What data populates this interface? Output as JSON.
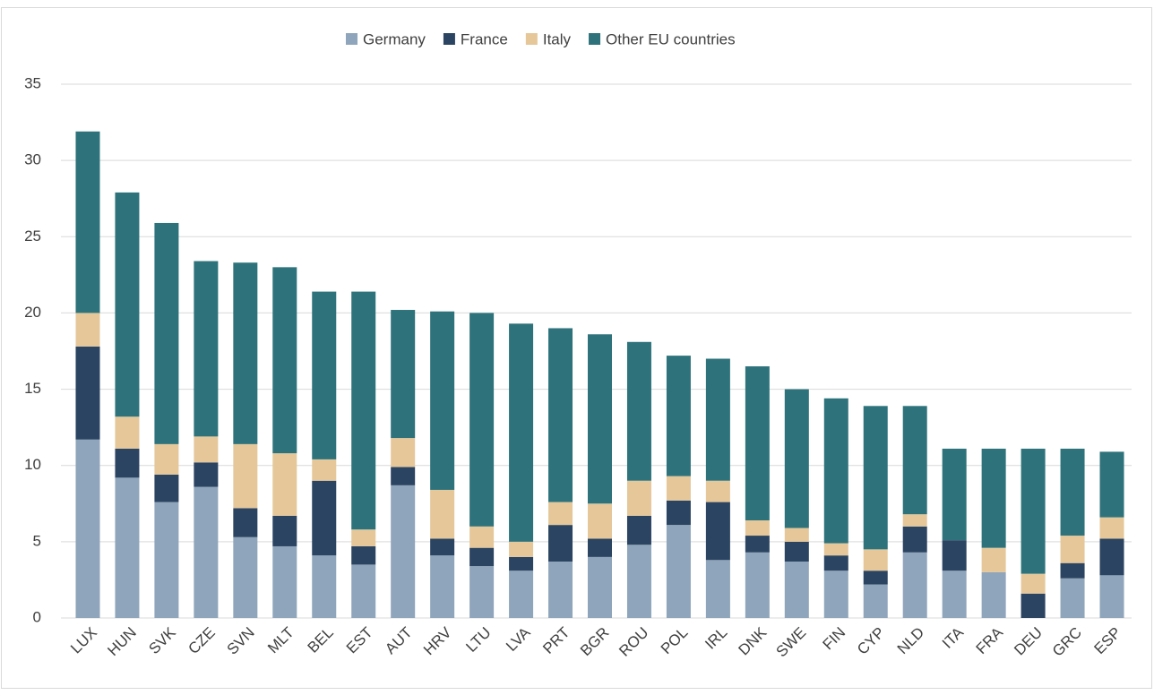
{
  "chart_data": {
    "type": "stacked-bar",
    "categories": [
      "LUX",
      "HUN",
      "SVK",
      "CZE",
      "SVN",
      "MLT",
      "BEL",
      "EST",
      "AUT",
      "HRV",
      "LTU",
      "LVA",
      "PRT",
      "BGR",
      "ROU",
      "POL",
      "IRL",
      "DNK",
      "SWE",
      "FIN",
      "CYP",
      "NLD",
      "ITA",
      "FRA",
      "DEU",
      "GRC",
      "ESP"
    ],
    "series": [
      {
        "name": "Germany",
        "color": "#8fa5bb",
        "values": [
          11.7,
          9.2,
          7.6,
          8.6,
          5.3,
          4.7,
          4.1,
          3.5,
          8.7,
          4.1,
          3.4,
          3.1,
          3.7,
          4.0,
          4.8,
          6.1,
          3.8,
          4.3,
          3.7,
          3.1,
          2.2,
          4.3,
          3.1,
          3.0,
          0,
          2.6,
          2.8
        ]
      },
      {
        "name": "France",
        "color": "#2b4461",
        "values": [
          6.1,
          1.9,
          1.8,
          1.6,
          1.9,
          2.0,
          4.9,
          1.2,
          1.2,
          1.1,
          1.2,
          0.9,
          2.4,
          1.2,
          1.9,
          1.6,
          3.8,
          1.1,
          1.3,
          1.0,
          0.9,
          1.7,
          2.0,
          0,
          1.6,
          1.0,
          2.4
        ]
      },
      {
        "name": "Italy",
        "color": "#e5c79a",
        "values": [
          2.2,
          2.1,
          2.0,
          1.7,
          4.2,
          4.1,
          1.4,
          1.1,
          1.9,
          3.2,
          1.4,
          1.0,
          1.5,
          2.3,
          2.3,
          1.6,
          1.4,
          1.0,
          0.9,
          0.8,
          1.4,
          0.8,
          0,
          1.6,
          1.3,
          1.8,
          1.4
        ]
      },
      {
        "name": "Other EU countries",
        "color": "#2e737b",
        "values": [
          11.9,
          14.7,
          14.5,
          11.5,
          11.9,
          12.2,
          11.0,
          15.6,
          8.4,
          11.7,
          14.0,
          14.3,
          11.4,
          11.1,
          9.1,
          7.9,
          8.0,
          10.1,
          9.1,
          9.5,
          9.4,
          7.1,
          6.0,
          6.5,
          8.2,
          5.7,
          4.3
        ]
      }
    ],
    "ylim": [
      0,
      35
    ],
    "yticks": [
      0,
      5,
      10,
      15,
      20,
      25,
      30,
      35
    ],
    "grid": true,
    "legend": "top"
  }
}
